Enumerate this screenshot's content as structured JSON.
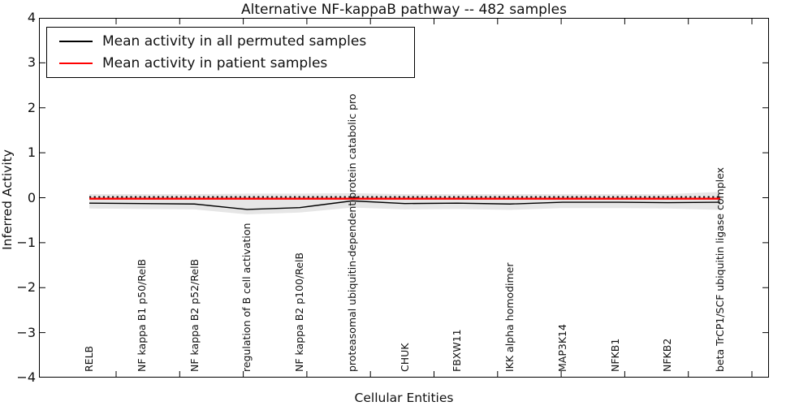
{
  "title": "Alternative NF-kappaB pathway -- 482 samples",
  "legend": {
    "items": [
      {
        "label": "Mean activity in all permuted samples",
        "color": "#000000"
      },
      {
        "label": "Mean activity in patient samples",
        "color": "#ff0000"
      }
    ]
  },
  "axes": {
    "xlabel": "Cellular Entities",
    "ylabel": "Inferred Activity"
  },
  "chart_data": {
    "type": "line",
    "title": "Alternative NF-kappaB pathway -- 482 samples",
    "xlabel": "Cellular Entities",
    "ylabel": "Inferred Activity",
    "ylim": [
      -4,
      4
    ],
    "yticks": [
      4,
      3,
      2,
      1,
      0,
      -1,
      -2,
      -3,
      -4
    ],
    "grid": false,
    "legend_position": "upper left",
    "categories": [
      "RELB",
      "NF kappa B1 p50/RelB",
      "NF kappa B2 p52/RelB",
      "regulation of B cell activation",
      "NF kappa B2 p100/RelB",
      "proteasomal ubiquitin-dependent protein catabolic pro",
      "CHUK",
      "FBXW11",
      "IKK alpha homodimer",
      "MAP3K14",
      "NFKB1",
      "NFKB2",
      "beta TrCP1/SCF ubiquitin ligase complex"
    ],
    "series": [
      {
        "name": "Mean activity in all permuted samples",
        "color": "#000000",
        "style": "solid",
        "values": [
          -0.12,
          -0.13,
          -0.14,
          -0.26,
          -0.22,
          -0.07,
          -0.13,
          -0.12,
          -0.14,
          -0.1,
          -0.1,
          -0.11,
          -0.1
        ]
      },
      {
        "name": "Mean activity in patient samples",
        "color": "#ff0000",
        "style": "solid",
        "values": [
          0.0,
          0.0,
          0.0,
          0.0,
          0.0,
          0.0,
          0.0,
          0.0,
          0.0,
          0.0,
          0.0,
          0.0,
          0.0
        ]
      }
    ],
    "baseline_zero": {
      "y": 0,
      "color": "#000000",
      "style": "dotted"
    },
    "band": {
      "name": "permuted sample spread",
      "color": "#e6e6e6",
      "upper": [
        0.08,
        0.08,
        0.08,
        0.09,
        0.09,
        0.1,
        0.08,
        0.08,
        0.08,
        0.08,
        0.08,
        0.08,
        0.13
      ],
      "lower": [
        -0.24,
        -0.25,
        -0.26,
        -0.37,
        -0.33,
        -0.22,
        -0.26,
        -0.25,
        -0.27,
        -0.23,
        -0.23,
        -0.24,
        -0.27
      ]
    }
  }
}
